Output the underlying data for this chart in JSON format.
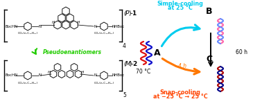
{
  "bg_color": "#ffffff",
  "fig_w": 3.78,
  "fig_h": 1.53,
  "dpi": 100,
  "left": {
    "p1_label": "(P)-1",
    "m2_label": "(M)-2",
    "pseudo_label": "Pseudoenantiomers",
    "pseudo_color": "#22cc00",
    "sub4": "4",
    "sub5": "5",
    "bochln": "BocHN",
    "nhboc": "NHBoc",
    "co2": "CO₂(n-C₁₀H₂₁)",
    "n_label": "N",
    "h_label": "H"
  },
  "right": {
    "simple_cooling_line1": "Simple-cooling",
    "simple_cooling_line2": "at 25 °C",
    "snap_cooling_line1": "Snap-cooling",
    "snap_cooling_line2": "at −25 °C → 25 °C",
    "label_A": "A",
    "label_B": "B",
    "label_C": "C",
    "temp_70": "70 °C",
    "time_60h": "60 h",
    "time_4h": "4 h",
    "cyan": "#00ccee",
    "orange": "#ff7700",
    "black": "#000000",
    "red_strand": "#dd1111",
    "blue_strand": "#1111cc",
    "pink_strand": "#ff66aa",
    "ltblue_strand": "#6688ff",
    "dark_red_strand": "#aa0000",
    "dark_blue_strand": "#000088",
    "snap_color": "#ff4400"
  }
}
